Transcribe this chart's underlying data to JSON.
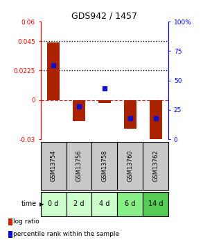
{
  "title": "GDS942 / 1457",
  "samples": [
    "GSM13754",
    "GSM13756",
    "GSM13758",
    "GSM13760",
    "GSM13762"
  ],
  "time_labels": [
    "0 d",
    "2 d",
    "4 d",
    "6 d",
    "14 d"
  ],
  "log_ratios": [
    0.044,
    -0.016,
    -0.002,
    -0.022,
    -0.03
  ],
  "percentile_ranks": [
    63,
    28,
    43,
    18,
    18
  ],
  "ylim_left": [
    -0.03,
    0.06
  ],
  "ylim_right": [
    0,
    100
  ],
  "yticks_left": [
    -0.03,
    0,
    0.0225,
    0.045,
    0.06
  ],
  "ytick_labels_left": [
    "-0.03",
    "0",
    "0.0225",
    "0.045",
    "0.06"
  ],
  "yticks_right": [
    0,
    25,
    50,
    75,
    100
  ],
  "ytick_labels_right": [
    "0",
    "25",
    "50",
    "75",
    "100%"
  ],
  "hlines": [
    0.045,
    0.0225
  ],
  "bar_color": "#aa2200",
  "dot_color": "#1111cc",
  "zero_line_color": "#cc3333",
  "gsm_bg_color": "#c8c8c8",
  "time_bg_colors": [
    "#ccffcc",
    "#ccffcc",
    "#ccffcc",
    "#88ee88",
    "#55cc55"
  ],
  "bar_width": 0.5
}
